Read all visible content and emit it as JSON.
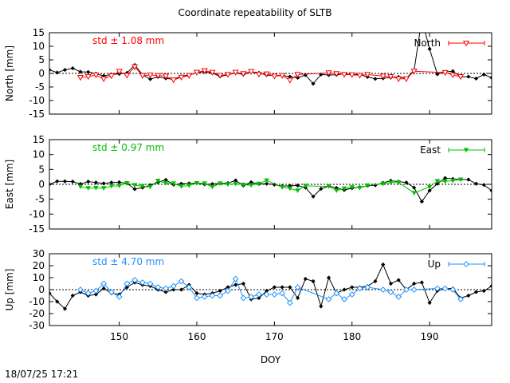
{
  "title": "Coordinate repeatability of SLTB",
  "timestamp": "18/07/25 17:21",
  "chart_data": [
    {
      "type": "line",
      "ylabel": "North [mm]",
      "xlabel": "",
      "xlim": [
        141,
        198
      ],
      "ylim": [
        -15,
        15
      ],
      "yticks": [
        -15,
        -10,
        -5,
        0,
        5,
        10,
        15
      ],
      "xticks": [
        150,
        160,
        170,
        180,
        190
      ],
      "xtick_labels_shown": false,
      "zero_line": true,
      "std_text": "std ± 1.08 mm",
      "std_color": "#ff0000",
      "legend": "North",
      "legend_color": "#ff0000",
      "marker": "triangle-down-open",
      "series": [
        {
          "name": "",
          "color": "#000000",
          "marker": "diamond",
          "x": [
            141,
            142,
            143,
            144,
            145,
            146,
            147,
            148,
            149,
            150,
            151,
            152,
            153,
            154,
            155,
            156,
            157,
            158,
            159,
            160,
            161,
            162,
            163,
            164,
            165,
            166,
            167,
            168,
            169,
            170,
            171,
            172,
            173,
            174,
            175,
            176,
            177,
            178,
            179,
            180,
            181,
            182,
            183,
            184,
            185,
            186,
            187,
            188,
            189,
            190,
            191,
            192,
            193,
            194,
            195,
            196,
            197,
            198
          ],
          "y": [
            1.3,
            0.3,
            1.3,
            1.9,
            0.6,
            0.5,
            -0.1,
            -0.9,
            -0.4,
            -0.2,
            0.2,
            3.1,
            -0.5,
            -2.1,
            -1.3,
            -1.8,
            -2.2,
            -1.1,
            -0.6,
            0.3,
            0.6,
            0.1,
            -1.1,
            -0.5,
            0.2,
            -0.4,
            0.6,
            0.2,
            -0.6,
            -0.9,
            -0.7,
            -1.2,
            -1.6,
            -0.6,
            -3.8,
            -0.4,
            -0.6,
            -0.5,
            -0.2,
            -0.4,
            -0.4,
            -1.3,
            -2.0,
            -1.8,
            -1.5,
            -1.3,
            -1.8,
            1.1,
            20.0,
            9.0,
            -0.3,
            0.6,
            0.8,
            -1.3,
            -1.2,
            -1.9,
            -0.4,
            -1.6
          ]
        },
        {
          "name": "North",
          "color": "#ff0000",
          "marker": "triangle-down-open",
          "x": [
            145,
            146,
            147,
            148,
            149,
            150,
            151,
            152,
            153,
            154,
            155,
            156,
            157,
            158,
            159,
            160,
            161,
            162,
            163,
            164,
            165,
            166,
            167,
            168,
            169,
            170,
            171,
            172,
            173,
            177,
            178,
            179,
            180,
            181,
            182,
            184,
            185,
            186,
            187,
            188,
            192,
            193,
            194
          ],
          "y": [
            -1.5,
            -1.2,
            -0.6,
            -2.0,
            -0.9,
            0.7,
            -0.7,
            2.4,
            -0.8,
            -0.6,
            -0.8,
            -1.0,
            -2.4,
            -1.4,
            -0.8,
            0.4,
            1.0,
            0.4,
            -0.7,
            -0.4,
            0.4,
            -0.1,
            0.7,
            -0.3,
            -0.2,
            -1.0,
            -0.8,
            -2.5,
            -0.4,
            0.2,
            -0.1,
            -0.4,
            -0.5,
            -0.7,
            -0.4,
            -1.0,
            -1.2,
            -2.0,
            -2.0,
            0.8,
            0.3,
            -0.6,
            -1.2
          ]
        }
      ]
    },
    {
      "type": "line",
      "ylabel": "East [mm]",
      "xlabel": "",
      "xlim": [
        141,
        198
      ],
      "ylim": [
        -15,
        15
      ],
      "yticks": [
        -15,
        -10,
        -5,
        0,
        5,
        10,
        15
      ],
      "xticks": [
        150,
        160,
        170,
        180,
        190
      ],
      "xtick_labels_shown": false,
      "zero_line": true,
      "std_text": "std ± 0.97 mm",
      "std_color": "#00c000",
      "legend": "East",
      "legend_color": "#00c000",
      "marker": "triangle-down-filled",
      "series": [
        {
          "name": "",
          "color": "#000000",
          "marker": "diamond",
          "x": [
            141,
            142,
            143,
            144,
            145,
            146,
            147,
            148,
            149,
            150,
            151,
            152,
            153,
            154,
            155,
            156,
            157,
            158,
            159,
            160,
            161,
            162,
            163,
            164,
            165,
            166,
            167,
            168,
            169,
            170,
            171,
            172,
            173,
            174,
            175,
            176,
            177,
            178,
            179,
            180,
            181,
            182,
            183,
            184,
            185,
            186,
            187,
            188,
            189,
            190,
            191,
            192,
            193,
            194,
            195,
            196,
            197,
            198
          ],
          "y": [
            0.0,
            1.0,
            1.0,
            0.9,
            0.1,
            0.9,
            0.6,
            0.3,
            0.6,
            0.7,
            0.3,
            -1.6,
            -1.1,
            -0.3,
            0.7,
            1.5,
            -0.1,
            0.2,
            0.3,
            0.4,
            0.0,
            0.1,
            0.3,
            0.4,
            1.3,
            -0.4,
            0.7,
            0.1,
            0.2,
            -0.1,
            -0.6,
            -0.5,
            -0.4,
            -1.1,
            -4.1,
            -1.5,
            -0.6,
            -1.2,
            -1.9,
            -1.3,
            -1.0,
            -0.5,
            -0.3,
            0.5,
            1.2,
            0.9,
            0.6,
            -1.1,
            -5.8,
            -2.1,
            0.2,
            2.1,
            1.8,
            1.6,
            1.6,
            0.2,
            -0.2,
            -2.1
          ]
        },
        {
          "name": "East",
          "color": "#00c000",
          "marker": "triangle-down-filled",
          "x": [
            145,
            146,
            147,
            148,
            149,
            150,
            151,
            152,
            153,
            154,
            155,
            156,
            157,
            158,
            159,
            160,
            161,
            162,
            163,
            164,
            165,
            166,
            167,
            168,
            169,
            171,
            172,
            173,
            174,
            177,
            178,
            179,
            180,
            181,
            182,
            184,
            185,
            186,
            188,
            190,
            191,
            192,
            193,
            194
          ],
          "y": [
            -0.8,
            -1.3,
            -1.2,
            -1.3,
            -0.6,
            -0.5,
            0.4,
            -0.3,
            -0.6,
            -0.9,
            1.2,
            0.4,
            0.3,
            -0.7,
            -0.4,
            0.4,
            0.3,
            -0.9,
            0.3,
            0.0,
            0.2,
            -0.1,
            -0.3,
            0.2,
            1.3,
            -1.0,
            -1.4,
            -2.1,
            -0.5,
            -0.7,
            -2.1,
            -1.4,
            -1.0,
            -1.2,
            -0.4,
            0.2,
            0.6,
            0.6,
            -2.9,
            -0.9,
            1.1,
            1.0,
            1.2,
            1.6
          ]
        }
      ]
    },
    {
      "type": "line",
      "ylabel": "Up [mm]",
      "xlabel": "DOY",
      "xlim": [
        141,
        198
      ],
      "ylim": [
        -30,
        30
      ],
      "yticks": [
        -30,
        -20,
        -10,
        0,
        10,
        20,
        30
      ],
      "xticks": [
        150,
        160,
        170,
        180,
        190
      ],
      "xtick_labels_shown": true,
      "zero_line": true,
      "std_text": "std ± 4.70 mm",
      "std_color": "#1e90ff",
      "legend": "Up",
      "legend_color": "#1e90ff",
      "marker": "diamond-open",
      "series": [
        {
          "name": "",
          "color": "#000000",
          "marker": "diamond",
          "x": [
            141,
            142,
            143,
            144,
            145,
            146,
            147,
            148,
            149,
            150,
            151,
            152,
            153,
            154,
            155,
            156,
            157,
            158,
            159,
            160,
            161,
            162,
            163,
            164,
            165,
            166,
            167,
            168,
            169,
            170,
            171,
            172,
            173,
            174,
            175,
            176,
            177,
            178,
            179,
            180,
            181,
            182,
            183,
            184,
            185,
            186,
            187,
            188,
            189,
            190,
            191,
            192,
            193,
            194,
            195,
            196,
            197,
            198
          ],
          "y": [
            -3,
            -10,
            -16,
            -5,
            -2,
            -5,
            -4,
            1,
            -3,
            -4,
            2,
            6,
            4,
            3,
            0,
            -2,
            0,
            0,
            4,
            -3,
            -4,
            -3,
            -1,
            2,
            4,
            5,
            -8,
            -7,
            -1,
            2,
            2,
            2,
            -7,
            9,
            7,
            -14,
            10,
            -3,
            0,
            2,
            2,
            3,
            7,
            21,
            5,
            8,
            0,
            5,
            6,
            -11,
            -1,
            1,
            1,
            -7,
            -5,
            -2,
            -1,
            3
          ]
        },
        {
          "name": "Up",
          "color": "#1e90ff",
          "marker": "diamond-open",
          "x": [
            145,
            146,
            147,
            148,
            149,
            150,
            151,
            152,
            153,
            154,
            155,
            156,
            157,
            158,
            159,
            160,
            161,
            162,
            163,
            164,
            165,
            166,
            167,
            168,
            169,
            170,
            171,
            172,
            173,
            177,
            178,
            179,
            180,
            181,
            182,
            184,
            185,
            186,
            187,
            188,
            191,
            192,
            193,
            194
          ],
          "y": [
            0,
            -3,
            -1,
            5,
            -2,
            -6,
            5,
            8,
            6,
            5,
            2,
            1,
            3,
            7,
            2,
            -7,
            -6,
            -5,
            -5,
            -1,
            9,
            -7,
            -6,
            -4,
            -4,
            -4,
            -3,
            -11,
            2,
            -8,
            -3,
            -8,
            -4,
            1,
            2,
            0,
            -2,
            -6,
            0,
            0,
            1,
            1,
            0,
            -8
          ]
        }
      ]
    }
  ]
}
